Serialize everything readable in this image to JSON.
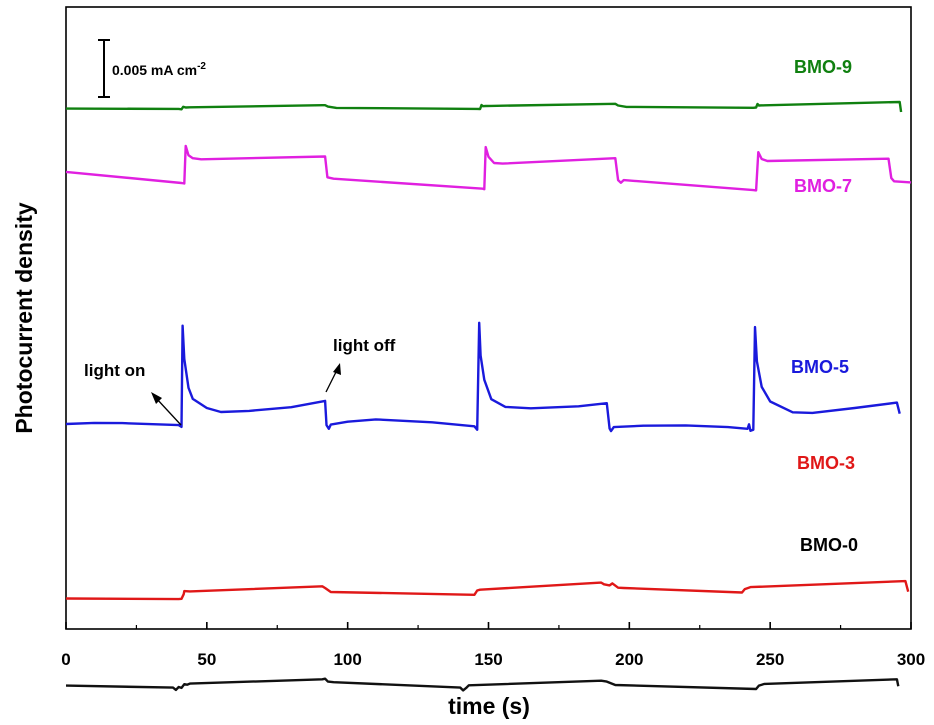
{
  "chart_data": {
    "type": "line",
    "xlabel": "time (s)",
    "ylabel": "Photocurrent density",
    "xlim": [
      0,
      300
    ],
    "x_ticks": [
      "0",
      "50",
      "100",
      "150",
      "200",
      "250",
      "300"
    ],
    "y_ticks_shown": false,
    "grid": false,
    "scale_bar": {
      "label": "0.005 mA cm",
      "superscript": "-2",
      "value_mA_cm2": 0.005
    },
    "annotations": [
      {
        "text": "light on",
        "points_to_x": 41
      },
      {
        "text": "light off",
        "points_to_x": 92
      }
    ],
    "series": [
      {
        "name": "BMO-9",
        "color": "#108010",
        "points": [
          [
            0,
            4.7
          ],
          [
            40,
            4.6
          ],
          [
            41,
            4.45
          ],
          [
            41.6,
            5.35
          ],
          [
            42.5,
            5.1
          ],
          [
            44,
            5.15
          ],
          [
            91,
            5.9
          ],
          [
            92,
            5.9
          ],
          [
            93,
            5.4
          ],
          [
            96,
            4.95
          ],
          [
            146,
            4.6
          ],
          [
            147,
            4.55
          ],
          [
            147.5,
            5.95
          ],
          [
            148,
            5.55
          ],
          [
            149,
            5.6
          ],
          [
            151,
            5.65
          ],
          [
            195,
            6.4
          ],
          [
            196,
            5.8
          ],
          [
            199,
            5.3
          ],
          [
            244,
            5.0
          ],
          [
            245,
            5.1
          ],
          [
            245.5,
            6.3
          ],
          [
            246,
            5.8
          ],
          [
            248,
            5.85
          ],
          [
            296,
            7.0
          ],
          [
            296.5,
            3.5
          ]
        ]
      },
      {
        "name": "BMO-7",
        "color": "#e020e0",
        "points": [
          [
            0,
            19.7
          ],
          [
            41,
            15.8
          ],
          [
            42,
            15.6
          ],
          [
            42.5,
            28.8
          ],
          [
            43.5,
            25.5
          ],
          [
            45,
            24.5
          ],
          [
            48,
            24.1
          ],
          [
            92,
            25.1
          ],
          [
            92.8,
            17.8
          ],
          [
            95,
            17.3
          ],
          [
            148,
            13.8
          ],
          [
            148.5,
            13.6
          ],
          [
            149,
            28.4
          ],
          [
            150,
            25.0
          ],
          [
            152,
            22.8
          ],
          [
            155,
            22.6
          ],
          [
            195,
            24.5
          ],
          [
            196,
            16.8
          ],
          [
            197,
            15.9
          ],
          [
            198,
            16.8
          ],
          [
            244,
            13.3
          ],
          [
            245,
            13.2
          ],
          [
            245.8,
            26.6
          ],
          [
            247,
            24.2
          ],
          [
            249,
            23.5
          ],
          [
            292,
            24.3
          ],
          [
            293,
            17.5
          ],
          [
            294,
            16.4
          ],
          [
            300,
            16.0
          ]
        ]
      },
      {
        "name": "BMO-5",
        "color": "#1a1adc",
        "points": [
          [
            0,
            0.0
          ],
          [
            10,
            0.4
          ],
          [
            20,
            0.3
          ],
          [
            40,
            -0.4
          ],
          [
            41,
            -1.0
          ],
          [
            41.4,
            34.5
          ],
          [
            42,
            22.8
          ],
          [
            43.5,
            12.7
          ],
          [
            45,
            8.8
          ],
          [
            50,
            5.6
          ],
          [
            55,
            4.2
          ],
          [
            65,
            4.6
          ],
          [
            80,
            5.9
          ],
          [
            92,
            8.1
          ],
          [
            92.5,
            -0.4
          ],
          [
            93.3,
            -1.7
          ],
          [
            94,
            -0.2
          ],
          [
            100,
            0.8
          ],
          [
            110,
            1.6
          ],
          [
            130,
            0.6
          ],
          [
            145,
            -0.8
          ],
          [
            146,
            -2.0
          ],
          [
            146.7,
            35.5
          ],
          [
            147.2,
            24.0
          ],
          [
            148.5,
            15.5
          ],
          [
            151,
            8.7
          ],
          [
            156,
            6.0
          ],
          [
            165,
            5.5
          ],
          [
            182,
            6.2
          ],
          [
            192,
            7.3
          ],
          [
            193,
            -1.6
          ],
          [
            193.5,
            -2.5
          ],
          [
            194.5,
            -1.1
          ],
          [
            205,
            -0.6
          ],
          [
            220,
            -0.5
          ],
          [
            235,
            -1.1
          ],
          [
            242,
            -1.7
          ],
          [
            242.5,
            -0.1
          ],
          [
            243,
            -2.4
          ],
          [
            244,
            -2.0
          ],
          [
            244.6,
            34.0
          ],
          [
            245.3,
            22.0
          ],
          [
            247,
            13.0
          ],
          [
            250,
            7.9
          ],
          [
            258,
            4.1
          ],
          [
            265,
            3.9
          ],
          [
            280,
            5.6
          ],
          [
            295,
            7.5
          ],
          [
            296,
            3.6
          ]
        ]
      },
      {
        "name": "BMO-3",
        "color": "#e01818",
        "points": [
          [
            0,
            -27.9
          ],
          [
            40,
            -28.1
          ],
          [
            41,
            -28.0
          ],
          [
            41.8,
            -26.4
          ],
          [
            42,
            -25.3
          ],
          [
            44,
            -25.4
          ],
          [
            91,
            -23.6
          ],
          [
            92,
            -24.2
          ],
          [
            94,
            -25.6
          ],
          [
            145,
            -26.6
          ],
          [
            146,
            -25.1
          ],
          [
            147,
            -24.8
          ],
          [
            190,
            -22.3
          ],
          [
            191,
            -22.9
          ],
          [
            193,
            -23.3
          ],
          [
            194,
            -22.6
          ],
          [
            196,
            -24.1
          ],
          [
            198,
            -24.2
          ],
          [
            240,
            -25.8
          ],
          [
            241,
            -24.6
          ],
          [
            243,
            -23.9
          ],
          [
            298,
            -21.8
          ],
          [
            299,
            -25.5
          ]
        ]
      },
      {
        "name": "BMO-0",
        "color": "#111111",
        "points": [
          [
            0,
            -38.1
          ],
          [
            38,
            -38.8
          ],
          [
            39,
            -39.6
          ],
          [
            40,
            -38.6
          ],
          [
            41,
            -38.9
          ],
          [
            42,
            -37.6
          ],
          [
            43,
            -37.8
          ],
          [
            44,
            -37.4
          ],
          [
            91,
            -35.9
          ],
          [
            92,
            -35.7
          ],
          [
            93,
            -36.7
          ],
          [
            95,
            -36.9
          ],
          [
            140,
            -38.8
          ],
          [
            141,
            -39.8
          ],
          [
            142,
            -39.0
          ],
          [
            143,
            -38.0
          ],
          [
            190,
            -36.4
          ],
          [
            192,
            -36.7
          ],
          [
            195,
            -37.9
          ],
          [
            245,
            -39.3
          ],
          [
            246,
            -38.1
          ],
          [
            248,
            -37.5
          ],
          [
            295,
            -35.9
          ],
          [
            295.5,
            -38.3
          ]
        ]
      }
    ]
  }
}
